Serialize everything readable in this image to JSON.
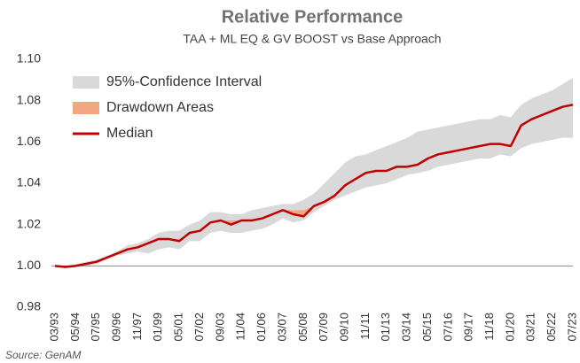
{
  "chart_data": {
    "type": "line",
    "title": "Relative Performance",
    "subtitle": "TAA + ML EQ & GV BOOST vs Base Approach",
    "source": "Source: GenAM",
    "categories": [
      "03/93",
      null,
      "05/94",
      null,
      "07/95",
      null,
      "09/96",
      null,
      "11/97",
      null,
      "01/99",
      null,
      "05/01",
      null,
      "07/02",
      null,
      "09/03",
      null,
      "11/04",
      null,
      "01/06",
      null,
      "03/07",
      null,
      "05/08",
      null,
      "07/09",
      null,
      "09/10",
      null,
      "11/11",
      null,
      "01/13",
      null,
      "03/14",
      null,
      "05/15",
      null,
      "07/16",
      null,
      "09/17",
      null,
      "11/18",
      null,
      "01/20",
      null,
      "03/21",
      null,
      "05/22",
      null,
      "07/23"
    ],
    "series": [
      {
        "name": "95%-Confidence Interval",
        "color": "#d9d9d9",
        "lower": [
          1.0,
          0.999,
          1.0,
          1.0,
          1.001,
          1.003,
          1.005,
          1.006,
          1.007,
          1.006,
          1.008,
          1.009,
          1.008,
          1.012,
          1.012,
          1.016,
          1.017,
          1.016,
          1.016,
          1.017,
          1.018,
          1.02,
          1.023,
          1.021,
          1.022,
          1.026,
          1.029,
          1.032,
          1.034,
          1.036,
          1.038,
          1.039,
          1.04,
          1.042,
          1.044,
          1.045,
          1.046,
          1.048,
          1.049,
          1.05,
          1.051,
          1.052,
          1.052,
          1.054,
          1.053,
          1.057,
          1.059,
          1.06,
          1.061,
          1.062,
          1.062
        ],
        "upper": [
          1.0,
          1.0,
          1.001,
          1.002,
          1.003,
          1.005,
          1.007,
          1.01,
          1.011,
          1.013,
          1.016,
          1.017,
          1.017,
          1.02,
          1.022,
          1.026,
          1.026,
          1.025,
          1.025,
          1.027,
          1.028,
          1.029,
          1.03,
          1.03,
          1.032,
          1.035,
          1.04,
          1.045,
          1.05,
          1.053,
          1.054,
          1.056,
          1.058,
          1.06,
          1.062,
          1.065,
          1.066,
          1.067,
          1.068,
          1.069,
          1.07,
          1.071,
          1.071,
          1.073,
          1.072,
          1.078,
          1.081,
          1.083,
          1.085,
          1.088,
          1.091
        ]
      },
      {
        "name": "Drawdown Areas",
        "color": "#f4a582"
      },
      {
        "name": "Median",
        "color": "#c00000",
        "values": [
          1.0,
          0.9995,
          1.0,
          1.001,
          1.002,
          1.004,
          1.006,
          1.008,
          1.009,
          1.011,
          1.013,
          1.013,
          1.012,
          1.016,
          1.017,
          1.021,
          1.022,
          1.02,
          1.022,
          1.022,
          1.023,
          1.025,
          1.027,
          1.025,
          1.024,
          1.029,
          1.031,
          1.034,
          1.039,
          1.042,
          1.045,
          1.046,
          1.046,
          1.048,
          1.048,
          1.049,
          1.052,
          1.054,
          1.055,
          1.056,
          1.057,
          1.058,
          1.059,
          1.059,
          1.058,
          1.068,
          1.071,
          1.073,
          1.075,
          1.077,
          1.078
        ]
      }
    ],
    "ylim": [
      0.98,
      1.1
    ],
    "yticks": [
      0.98,
      {
        "value": 1,
        "label": "1.00"
      },
      1.02,
      1.04,
      1.06,
      1.08,
      {
        "value": 1.1,
        "label": "1.10"
      }
    ],
    "baseline": 1,
    "grid": false,
    "legend": "upper left"
  }
}
